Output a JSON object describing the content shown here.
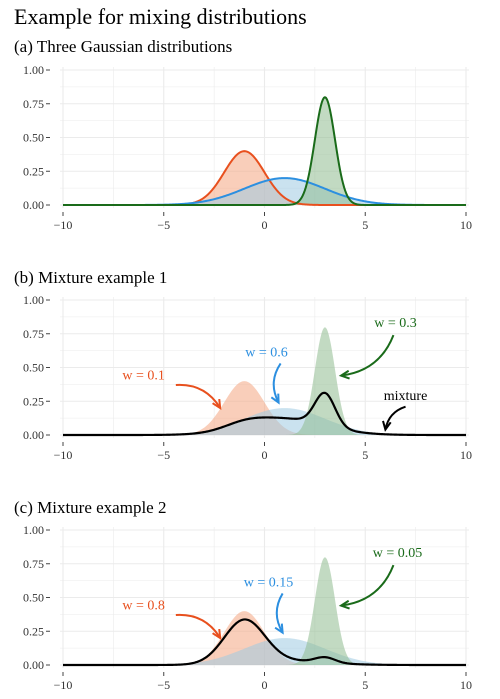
{
  "figure": {
    "title": "Example for mixing distributions"
  },
  "colors": {
    "red": "#e8501e",
    "red_fill": "#f4a582",
    "blue": "#2c8fe0",
    "blue_fill": "#9ecae1",
    "green": "#1a6b1a",
    "green_fill": "#8fbc8f",
    "black": "#000000",
    "grid": "#ebebeb"
  },
  "chart_data": [
    {
      "type": "area",
      "subtitle": "(a) Three Gaussian distributions",
      "xlim": [
        -10,
        10
      ],
      "ylim": [
        0,
        1
      ],
      "x_ticks": [
        -10,
        -5,
        0,
        5,
        10
      ],
      "x_tick_labels": [
        "−10",
        "−5",
        "0",
        "5",
        "10"
      ],
      "y_ticks": [
        0,
        0.25,
        0.5,
        0.75,
        1
      ],
      "y_tick_labels": [
        "0.00",
        "0.25",
        "0.50",
        "0.75",
        "1.00"
      ],
      "grid": true,
      "components": [
        {
          "color": "red",
          "mean": -1,
          "sd": 1,
          "peak_density": 0.399
        },
        {
          "color": "blue",
          "mean": 1,
          "sd": 2,
          "peak_density": 0.199
        },
        {
          "color": "green",
          "mean": 3,
          "sd": 0.5,
          "peak_density": 0.798
        }
      ],
      "series": [
        {
          "type": "density",
          "component": 0,
          "style": "outlined"
        },
        {
          "type": "density",
          "component": 1,
          "style": "outlined"
        },
        {
          "type": "density",
          "component": 2,
          "style": "outlined"
        }
      ],
      "annotations": []
    },
    {
      "type": "area",
      "subtitle": "(b) Mixture example 1",
      "xlim": [
        -10,
        10
      ],
      "ylim": [
        0,
        1
      ],
      "x_ticks": [
        -10,
        -5,
        0,
        5,
        10
      ],
      "x_tick_labels": [
        "−10",
        "−5",
        "0",
        "5",
        "10"
      ],
      "y_ticks": [
        0,
        0.25,
        0.5,
        0.75,
        1
      ],
      "y_tick_labels": [
        "0.00",
        "0.25",
        "0.50",
        "0.75",
        "1.00"
      ],
      "grid": true,
      "components": [
        {
          "color": "red",
          "mean": -1,
          "sd": 1,
          "peak_density": 0.399
        },
        {
          "color": "blue",
          "mean": 1,
          "sd": 2,
          "peak_density": 0.199
        },
        {
          "color": "green",
          "mean": 3,
          "sd": 0.5,
          "peak_density": 0.798
        }
      ],
      "weights": [
        0.1,
        0.6,
        0.3
      ],
      "series": [
        {
          "type": "density",
          "component": 0,
          "style": "filled"
        },
        {
          "type": "density",
          "component": 1,
          "style": "filled"
        },
        {
          "type": "density",
          "component": 2,
          "style": "filled"
        },
        {
          "type": "mixture",
          "style": "line"
        }
      ],
      "annotations": [
        {
          "text": "w = 0.1",
          "color": "red",
          "x": -6,
          "y": 0.41,
          "arrow_from": [
            -4.4,
            0.37
          ],
          "arrow_to": [
            -2.2,
            0.2
          ],
          "curve": -1
        },
        {
          "text": "w = 0.6",
          "color": "blue",
          "x": 0.1,
          "y": 0.58,
          "arrow_from": [
            0.8,
            0.53
          ],
          "arrow_to": [
            0.7,
            0.24
          ],
          "curve": 1
        },
        {
          "text": "w = 0.3",
          "color": "green",
          "x": 6.5,
          "y": 0.8,
          "arrow_from": [
            6.4,
            0.74
          ],
          "arrow_to": [
            3.8,
            0.44
          ],
          "curve": -1
        },
        {
          "text": "mixture",
          "color": "black",
          "x": 7,
          "y": 0.26,
          "arrow_from": [
            7,
            0.21
          ],
          "arrow_to": [
            6,
            0.04
          ],
          "curve": 1
        }
      ]
    },
    {
      "type": "area",
      "subtitle": "(c) Mixture example 2",
      "xlim": [
        -10,
        10
      ],
      "ylim": [
        0,
        1
      ],
      "x_ticks": [
        -10,
        -5,
        0,
        5,
        10
      ],
      "x_tick_labels": [
        "−10",
        "−5",
        "0",
        "5",
        "10"
      ],
      "y_ticks": [
        0,
        0.25,
        0.5,
        0.75,
        1
      ],
      "y_tick_labels": [
        "0.00",
        "0.25",
        "0.50",
        "0.75",
        "1.00"
      ],
      "grid": true,
      "components": [
        {
          "color": "red",
          "mean": -1,
          "sd": 1,
          "peak_density": 0.399
        },
        {
          "color": "blue",
          "mean": 1,
          "sd": 2,
          "peak_density": 0.199
        },
        {
          "color": "green",
          "mean": 3,
          "sd": 0.5,
          "peak_density": 0.798
        }
      ],
      "weights": [
        0.8,
        0.15,
        0.05
      ],
      "series": [
        {
          "type": "density",
          "component": 0,
          "style": "filled"
        },
        {
          "type": "density",
          "component": 1,
          "style": "filled"
        },
        {
          "type": "density",
          "component": 2,
          "style": "filled"
        },
        {
          "type": "mixture",
          "style": "line"
        }
      ],
      "annotations": [
        {
          "text": "w = 0.8",
          "color": "red",
          "x": -6,
          "y": 0.41,
          "arrow_from": [
            -4.4,
            0.37
          ],
          "arrow_to": [
            -2.2,
            0.2
          ],
          "curve": -1
        },
        {
          "text": "w = 0.15",
          "color": "blue",
          "x": 0.2,
          "y": 0.58,
          "arrow_from": [
            0.9,
            0.53
          ],
          "arrow_to": [
            0.9,
            0.24
          ],
          "curve": 1
        },
        {
          "text": "w = 0.05",
          "color": "green",
          "x": 6.6,
          "y": 0.8,
          "arrow_from": [
            6.4,
            0.74
          ],
          "arrow_to": [
            3.8,
            0.44
          ],
          "curve": -1
        }
      ]
    }
  ]
}
